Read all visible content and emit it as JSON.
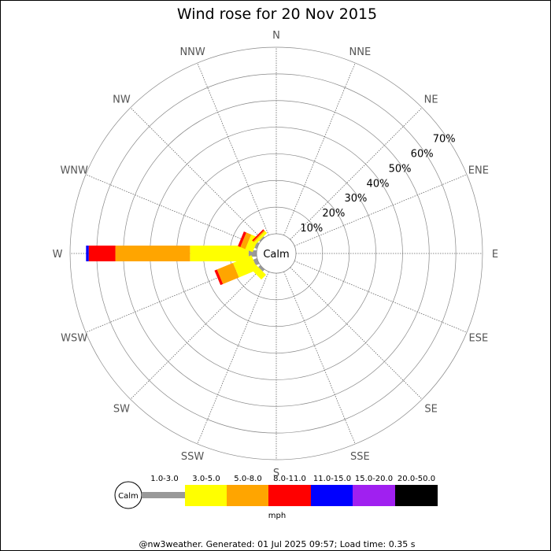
{
  "chart_data": {
    "type": "wind-rose",
    "title": "Wind rose for 20 Nov 2015",
    "directions": [
      "N",
      "NNE",
      "NE",
      "ENE",
      "E",
      "ESE",
      "SE",
      "SSE",
      "S",
      "SSW",
      "SW",
      "WSW",
      "W",
      "WNW",
      "NW",
      "NNW"
    ],
    "radial_ticks": [
      "10%",
      "20%",
      "30%",
      "40%",
      "50%",
      "60%",
      "70%"
    ],
    "radial_max": 70,
    "calm_label": "Calm",
    "speed_bins": [
      {
        "label": "1.0-3.0",
        "color": "#999999"
      },
      {
        "label": "3.0-5.0",
        "color": "#ffff00"
      },
      {
        "label": "5.0-8.0",
        "color": "#ffa500"
      },
      {
        "label": "8.0-11.0",
        "color": "#ff0000"
      },
      {
        "label": "11.0-15.0",
        "color": "#0000ff"
      },
      {
        "label": "15.0-20.0",
        "color": "#a020f0"
      },
      {
        "label": "20.0-50.0",
        "color": "#000000"
      }
    ],
    "series": [
      {
        "direction": "W",
        "segments": [
          3,
          22,
          28,
          10,
          1,
          0,
          0
        ]
      },
      {
        "direction": "WNW",
        "segments": [
          1,
          3,
          2,
          1,
          0,
          0,
          0
        ]
      },
      {
        "direction": "NW",
        "segments": [
          0.5,
          1,
          0.5,
          0.5,
          0,
          0,
          0
        ]
      },
      {
        "direction": "WSW",
        "segments": [
          1.5,
          7.5,
          6.5,
          1,
          0,
          0,
          0
        ]
      },
      {
        "direction": "SW",
        "segments": [
          1,
          2.5,
          0,
          0,
          0,
          0,
          0
        ]
      }
    ],
    "unit": "mph"
  },
  "footer": "@nw3weather. Generated: 01 Jul 2025 09:57; Load time: 0.35 s"
}
